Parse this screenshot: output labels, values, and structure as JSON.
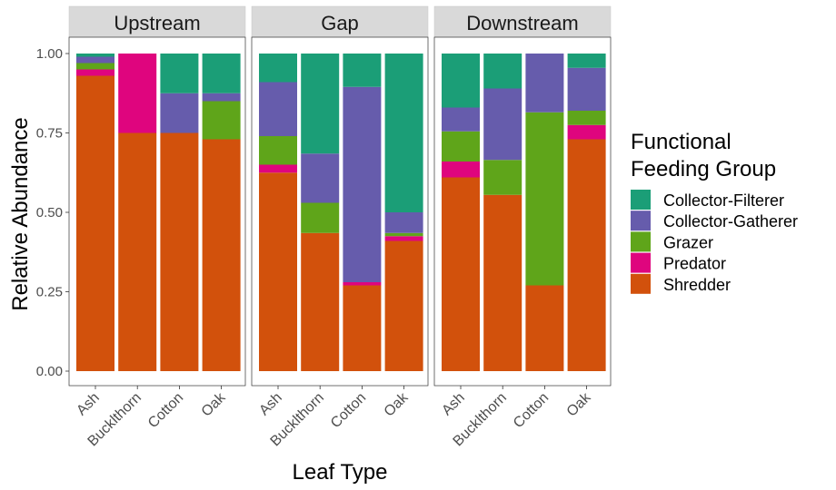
{
  "chart_data": {
    "type": "bar",
    "stacked": true,
    "facet_by": "Site",
    "facets": [
      {
        "label": "Upstream",
        "categories": [
          "Ash",
          "Bucklthorn",
          "Cotton",
          "Oak"
        ],
        "series": [
          {
            "name": "Shredder",
            "values": [
              0.93,
              0.75,
              0.75,
              0.73
            ]
          },
          {
            "name": "Predator",
            "values": [
              0.02,
              0.25,
              0.0,
              0.0
            ]
          },
          {
            "name": "Grazer",
            "values": [
              0.02,
              0.0,
              0.0,
              0.12
            ]
          },
          {
            "name": "Collector-Gatherer",
            "values": [
              0.02,
              0.0,
              0.125,
              0.025
            ]
          },
          {
            "name": "Collector-Filterer",
            "values": [
              0.01,
              0.0,
              0.125,
              0.125
            ]
          }
        ]
      },
      {
        "label": "Gap",
        "categories": [
          "Ash",
          "Bucklthorn",
          "Cotton",
          "Oak"
        ],
        "series": [
          {
            "name": "Shredder",
            "values": [
              0.625,
              0.435,
              0.27,
              0.41
            ]
          },
          {
            "name": "Predator",
            "values": [
              0.025,
              0.0,
              0.01,
              0.015
            ]
          },
          {
            "name": "Grazer",
            "values": [
              0.09,
              0.095,
              0.0,
              0.01
            ]
          },
          {
            "name": "Collector-Gatherer",
            "values": [
              0.17,
              0.155,
              0.615,
              0.065
            ]
          },
          {
            "name": "Collector-Filterer",
            "values": [
              0.09,
              0.315,
              0.105,
              0.5
            ]
          }
        ]
      },
      {
        "label": "Downstream",
        "categories": [
          "Ash",
          "Bucklthorn",
          "Cotton",
          "Oak"
        ],
        "series": [
          {
            "name": "Shredder",
            "values": [
              0.61,
              0.555,
              0.27,
              0.73
            ]
          },
          {
            "name": "Predator",
            "values": [
              0.05,
              0.0,
              0.0,
              0.045
            ]
          },
          {
            "name": "Grazer",
            "values": [
              0.095,
              0.11,
              0.545,
              0.045
            ]
          },
          {
            "name": "Collector-Gatherer",
            "values": [
              0.075,
              0.225,
              0.185,
              0.135
            ]
          },
          {
            "name": "Collector-Filterer",
            "values": [
              0.17,
              0.11,
              0.0,
              0.045
            ]
          }
        ]
      }
    ],
    "xlabel": "Leaf Type",
    "ylabel": "Relative Abundance",
    "ylim": [
      0,
      1
    ],
    "yticks": [
      "0.00",
      "0.25",
      "0.50",
      "0.75",
      "1.00"
    ],
    "ytick_values": [
      0,
      0.25,
      0.5,
      0.75,
      1.0
    ],
    "legend": {
      "title_lines": [
        "Functional",
        "Feeding Group"
      ],
      "placement": "right",
      "entries": [
        {
          "name": "Collector-Filterer",
          "color": "#1b9e77"
        },
        {
          "name": "Collector-Gatherer",
          "color": "#665cac"
        },
        {
          "name": "Grazer",
          "color": "#5fa51a"
        },
        {
          "name": "Predator",
          "color": "#df057e"
        },
        {
          "name": "Shredder",
          "color": "#d2510c"
        }
      ]
    },
    "stack_order_bottom_to_top": [
      "Shredder",
      "Predator",
      "Grazer",
      "Collector-Gatherer",
      "Collector-Filterer"
    ],
    "grid": false
  }
}
